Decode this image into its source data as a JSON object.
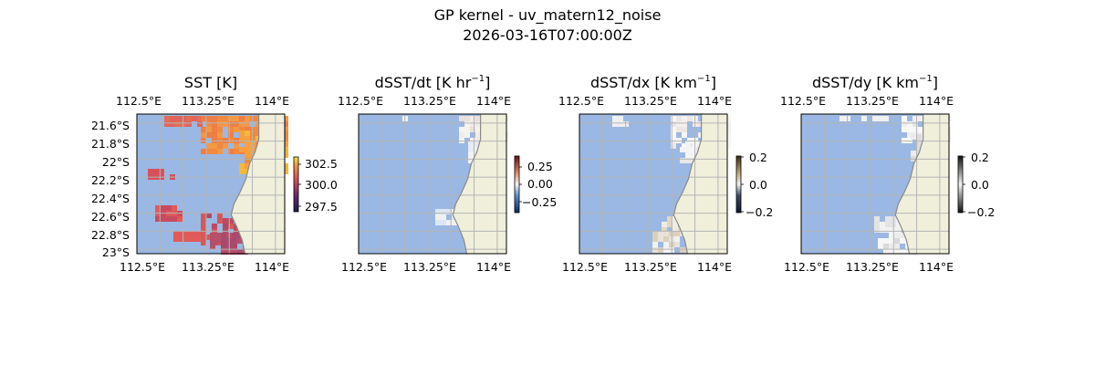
{
  "figure": {
    "title_line1": "GP kernel - uv_matern12_noise",
    "title_line2": "2026-03-16T07:00:00Z"
  },
  "colors": {
    "ocean": "#9ab8e3",
    "land": "#efefdc",
    "coast": "#8a8a8a",
    "grid": "#b4b4b4"
  },
  "map_extent": {
    "lon": [
      112.5,
      114.1
    ],
    "lat": [
      -23.05,
      -21.5
    ]
  },
  "coastline": [
    [
      113.82,
      -21.5
    ],
    [
      113.82,
      -21.78
    ],
    [
      113.78,
      -21.92
    ],
    [
      113.72,
      -22.05
    ],
    [
      113.68,
      -22.22
    ],
    [
      113.62,
      -22.36
    ],
    [
      113.55,
      -22.5
    ],
    [
      113.52,
      -22.62
    ],
    [
      113.58,
      -22.75
    ],
    [
      113.64,
      -22.9
    ],
    [
      113.67,
      -23.05
    ]
  ],
  "panels": [
    {
      "id": "sst",
      "title": "SST [K]",
      "top_lon_ticks": [
        "112.5°E",
        "113.25°E",
        "114°E"
      ],
      "bottom_lon_ticks": [
        "112.5°E",
        "113.25°E",
        "114°E"
      ],
      "lat_ticks": [
        "21.6°S",
        "21.8°S",
        "22°S",
        "22.2°S",
        "22.4°S",
        "22.6°S",
        "22.8°S",
        "23°S"
      ],
      "colorbar": {
        "ticks": [
          "302.5",
          "300.0",
          "297.5"
        ],
        "range": [
          297.0,
          303.5
        ]
      }
    },
    {
      "id": "dsstdt",
      "title_main": "dSST/dt [K hr",
      "title_sup": "−1",
      "title_end": "]",
      "top_lon_ticks": [
        "112.5°E",
        "113.25°E",
        "114°E"
      ],
      "bottom_lon_ticks": [
        "112.5°E",
        "113.25°E",
        "114°E"
      ],
      "colorbar": {
        "ticks": [
          "0.25",
          "0.00",
          "−0.25"
        ],
        "range": [
          -0.4,
          0.4
        ]
      }
    },
    {
      "id": "dsstdx",
      "title_main": "dSST/dx [K km",
      "title_sup": "−1",
      "title_end": "]",
      "top_lon_ticks": [
        "112.5°E",
        "113.25°E",
        "114°E"
      ],
      "bottom_lon_ticks": [
        "112.5°E",
        "113.25°E",
        "114°E"
      ],
      "colorbar": {
        "ticks": [
          "0.2",
          "0.0",
          "−0.2"
        ],
        "range": [
          -0.2,
          0.2
        ]
      }
    },
    {
      "id": "dsstdy",
      "title_main": "dSST/dy [K km",
      "title_sup": "−1",
      "title_end": "]",
      "top_lon_ticks": [
        "112.5°E",
        "113.25°E",
        "114°E"
      ],
      "bottom_lon_ticks": [
        "112.5°E",
        "113.25°E",
        "114°E"
      ],
      "colorbar": {
        "ticks": [
          "0.2",
          "0.0",
          "−0.2"
        ],
        "range": [
          -0.2,
          0.2
        ]
      }
    }
  ]
}
